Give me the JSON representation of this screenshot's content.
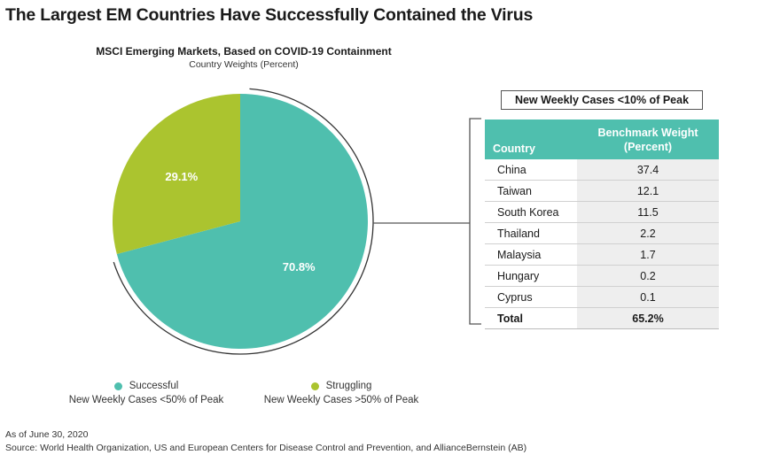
{
  "title": "The Largest EM Countries Have Successfully Contained the Virus",
  "chart_data": {
    "type": "pie",
    "title": "MSCI Emerging Markets, Based on COVID-19 Containment",
    "subtitle": "Country Weights (Percent)",
    "slices": [
      {
        "label": "70.8%",
        "value": 70.8,
        "color": "#4fbfae"
      },
      {
        "label": "29.1%",
        "value": 29.1,
        "color": "#abc42f"
      }
    ],
    "legend": [
      {
        "name": "Successful",
        "detail": "New Weekly Cases <50% of Peak",
        "color": "#4fbfae"
      },
      {
        "name": "Struggling",
        "detail": "New Weekly Cases >50% of Peak",
        "color": "#abc42f"
      }
    ]
  },
  "table": {
    "label": "New Weekly Cases <10% of Peak",
    "headers": {
      "country": "Country",
      "weight_line1": "Benchmark Weight",
      "weight_line2": "(Percent)"
    },
    "rows": [
      {
        "country": "China",
        "weight": "37.4"
      },
      {
        "country": "Taiwan",
        "weight": "12.1"
      },
      {
        "country": "South Korea",
        "weight": "11.5"
      },
      {
        "country": "Thailand",
        "weight": "2.2"
      },
      {
        "country": "Malaysia",
        "weight": "1.7"
      },
      {
        "country": "Hungary",
        "weight": "0.2"
      },
      {
        "country": "Cyprus",
        "weight": "0.1"
      }
    ],
    "total": {
      "country": "Total",
      "weight": "65.2%"
    }
  },
  "notes": {
    "date": "As of June 30, 2020",
    "source": "Source: World Health Organization, US and European Centers for Disease Control and Prevention, and AllianceBernstein (AB)"
  }
}
